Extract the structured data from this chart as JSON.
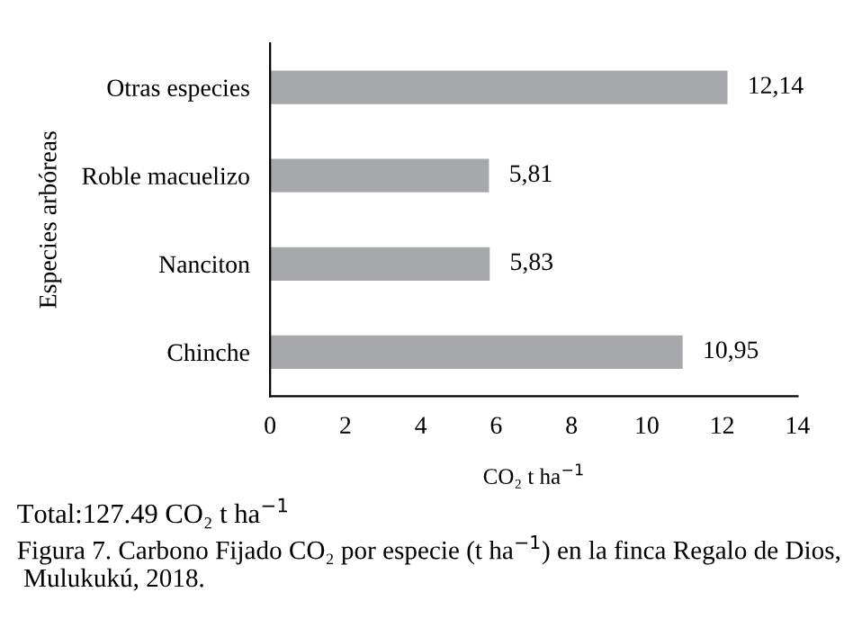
{
  "chart_data": {
    "type": "bar",
    "orientation": "horizontal",
    "categories": [
      "Otras especies",
      "Roble macuelizo",
      "Nanciton",
      "Chinche"
    ],
    "values": [
      12.14,
      5.81,
      5.83,
      10.95
    ],
    "value_labels": [
      "12,14",
      "5,81",
      "5,83",
      "10,95"
    ],
    "color": "#a6a8ab",
    "xlim": [
      0,
      14
    ],
    "xticks": [
      0,
      2,
      4,
      6,
      8,
      10,
      12,
      14
    ],
    "xlabel": "CO₂ t ha$^{−1}$",
    "ylabel": "Especies arbóreas",
    "grid": false,
    "legend": false,
    "annotations": [
      "Total:127.49 CO₂ t ha$^{−1}$",
      "Figura 7. Carbono Fijado CO₂ por especie (t ha$^{−1}$) en la finca Regalo de Dios,  Mulukukú, 2018."
    ]
  }
}
